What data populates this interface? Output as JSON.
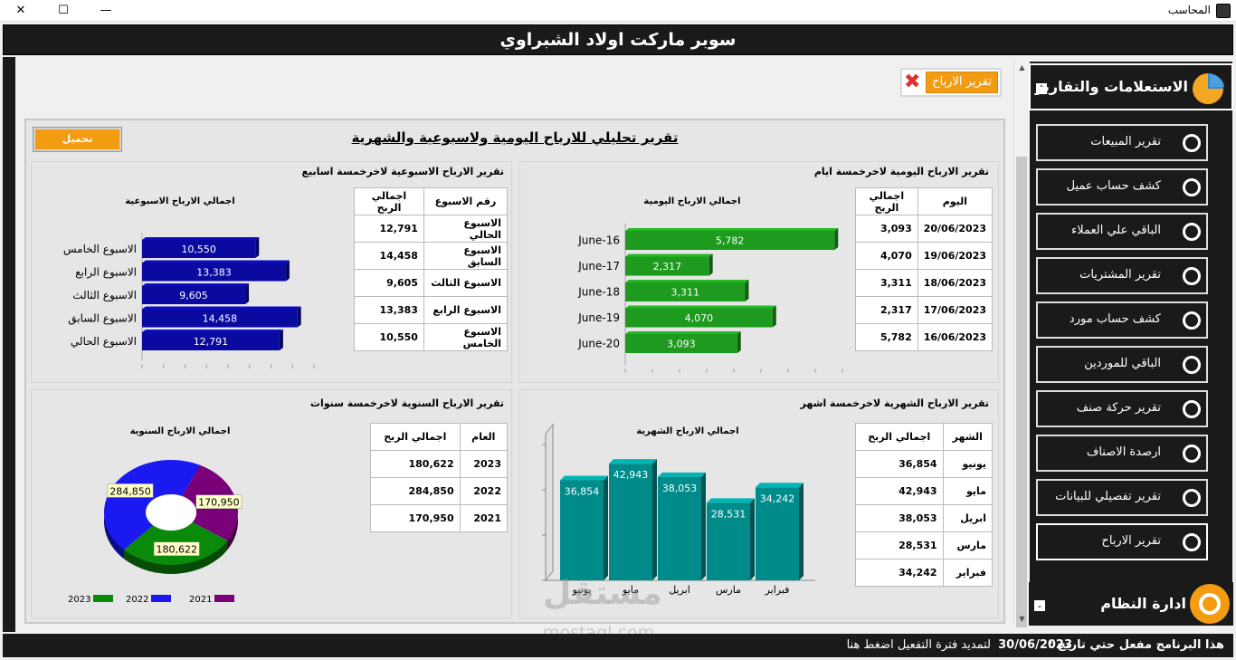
{
  "window": {
    "title": "المحاسب",
    "close": "✕",
    "maximize": "☐",
    "minimize": "—"
  },
  "header": {
    "title": "سوبر ماركت اولاد الشبراوي"
  },
  "profit_button": {
    "label": "تقرير الارباح",
    "close": "✖"
  },
  "report": {
    "title": "تقرير تحليلي للارباح اليومية ولاسبوعية والشهرية",
    "load_button": "تحميل"
  },
  "daily": {
    "title": "تقرير الارباح اليومية لاخرخمسة ايام",
    "headers": [
      "اليوم",
      "اجمالي الربح"
    ],
    "rows": [
      [
        "20/06/2023",
        "3,093"
      ],
      [
        "19/06/2023",
        "4,070"
      ],
      [
        "18/06/2023",
        "3,311"
      ],
      [
        "17/06/2023",
        "2,317"
      ],
      [
        "16/06/2023",
        "5,782"
      ]
    ],
    "chart_title": "اجمالي الارباح اليومية"
  },
  "weekly": {
    "title": "تقرير الارباح الاسبوعية لاخرخمسة اسابيع",
    "headers": [
      "رقم الاسبوع",
      "اجمالي الربح"
    ],
    "rows": [
      [
        "الاسبوع الحالي",
        "12,791"
      ],
      [
        "الاسبوع السابق",
        "14,458"
      ],
      [
        "الاسبوع الثالث",
        "9,605"
      ],
      [
        "الاسبوع الرابع",
        "13,383"
      ],
      [
        "الاسبوع الخامس",
        "10,550"
      ]
    ],
    "chart_title": "اجمالي الارباح الاسبوعية"
  },
  "monthly": {
    "title": "تقرير الارباح الشهرية لاخرخمسة اشهر",
    "headers": [
      "الشهر",
      "اجمالي الربح"
    ],
    "rows": [
      [
        "يونيو",
        "36,854"
      ],
      [
        "مايو",
        "42,943"
      ],
      [
        "ابريل",
        "38,053"
      ],
      [
        "مارس",
        "28,531"
      ],
      [
        "فبراير",
        "34,242"
      ]
    ],
    "chart_title": "اجمالي الارباح الشهرية"
  },
  "yearly": {
    "title": "تقرير الارباح السنوية لاخرخمسة سنوات",
    "headers": [
      "العام",
      "اجمالي الربح"
    ],
    "rows": [
      [
        "2023",
        "180,622"
      ],
      [
        "2022",
        "284,850"
      ],
      [
        "2021",
        "170,950"
      ]
    ],
    "chart_title": "اجمالي الارباح السنوية"
  },
  "chart_data": [
    {
      "type": "bar",
      "orientation": "horizontal",
      "title": "اجمالي الارباح اليومية",
      "categories": [
        "June-16",
        "June-17",
        "June-18",
        "June-19",
        "June-20"
      ],
      "values": [
        5782,
        2317,
        3311,
        4070,
        3093
      ],
      "labels": [
        "5,782",
        "2,317",
        "3,311",
        "4,070",
        "3,093"
      ],
      "xlim": [
        0,
        6000
      ],
      "color": "#1e9a1e"
    },
    {
      "type": "bar",
      "orientation": "horizontal",
      "title": "اجمالي الارباح الاسبوعية",
      "categories": [
        "الاسبوع الخامس",
        "الاسبوع الرابع",
        "الاسبوع الثالث",
        "الاسبوع السابق",
        "الاسبوع الحالي"
      ],
      "values": [
        10550,
        13383,
        9605,
        14458,
        12791
      ],
      "labels": [
        "10,550",
        "13,383",
        "9,605",
        "14,458",
        "12,791"
      ],
      "xlim": [
        0,
        16000
      ],
      "color": "#0a0aa0"
    },
    {
      "type": "bar",
      "orientation": "vertical",
      "title": "اجمالي الارباح الشهرية",
      "categories": [
        "يونيو",
        "مايو",
        "ابريل",
        "مارس",
        "فبراير"
      ],
      "values": [
        36854,
        42943,
        38053,
        28531,
        34242
      ],
      "labels": [
        "36,854",
        "42,943",
        "38,053",
        "28,531",
        "34,242"
      ],
      "ylim": [
        0,
        50000
      ],
      "color": "#008b8b"
    },
    {
      "type": "pie",
      "style": "donut-3d",
      "title": "اجمالي الارباح السنوية",
      "categories": [
        "2023",
        "2022",
        "2021"
      ],
      "values": [
        180622,
        284850,
        170950
      ],
      "labels": [
        "180,622",
        "284,850",
        "170,950"
      ],
      "colors": [
        "#0a8a0a",
        "#1a1af0",
        "#7a007a"
      ],
      "legend": "bottom"
    }
  ],
  "sidebar": {
    "header": "الاستعلامات والتقارير",
    "items": [
      "تقرير المبيعات",
      "كشف حساب عميل",
      "الباقي علي العملاء",
      "تقرير المشتريات",
      "كشف حساب مورد",
      "الباقي للموردين",
      "تقرير حركة صنف",
      "ارصدة الاصناف",
      "تقرير تفصيلي للبيانات",
      "تقرير الارباح"
    ],
    "footer": "ادارة النظام"
  },
  "status": {
    "activation": "هذا البرنامج مفعل حتي تاريخ :",
    "date": "30/06/2023",
    "extend": "لتمديد فترة التفعيل اضغط هنا"
  },
  "watermark": {
    "text": "مستقل",
    "sub": "mostaql.com"
  },
  "colors": {
    "accent": "#f39c12",
    "dark": "#1a1a1a"
  }
}
